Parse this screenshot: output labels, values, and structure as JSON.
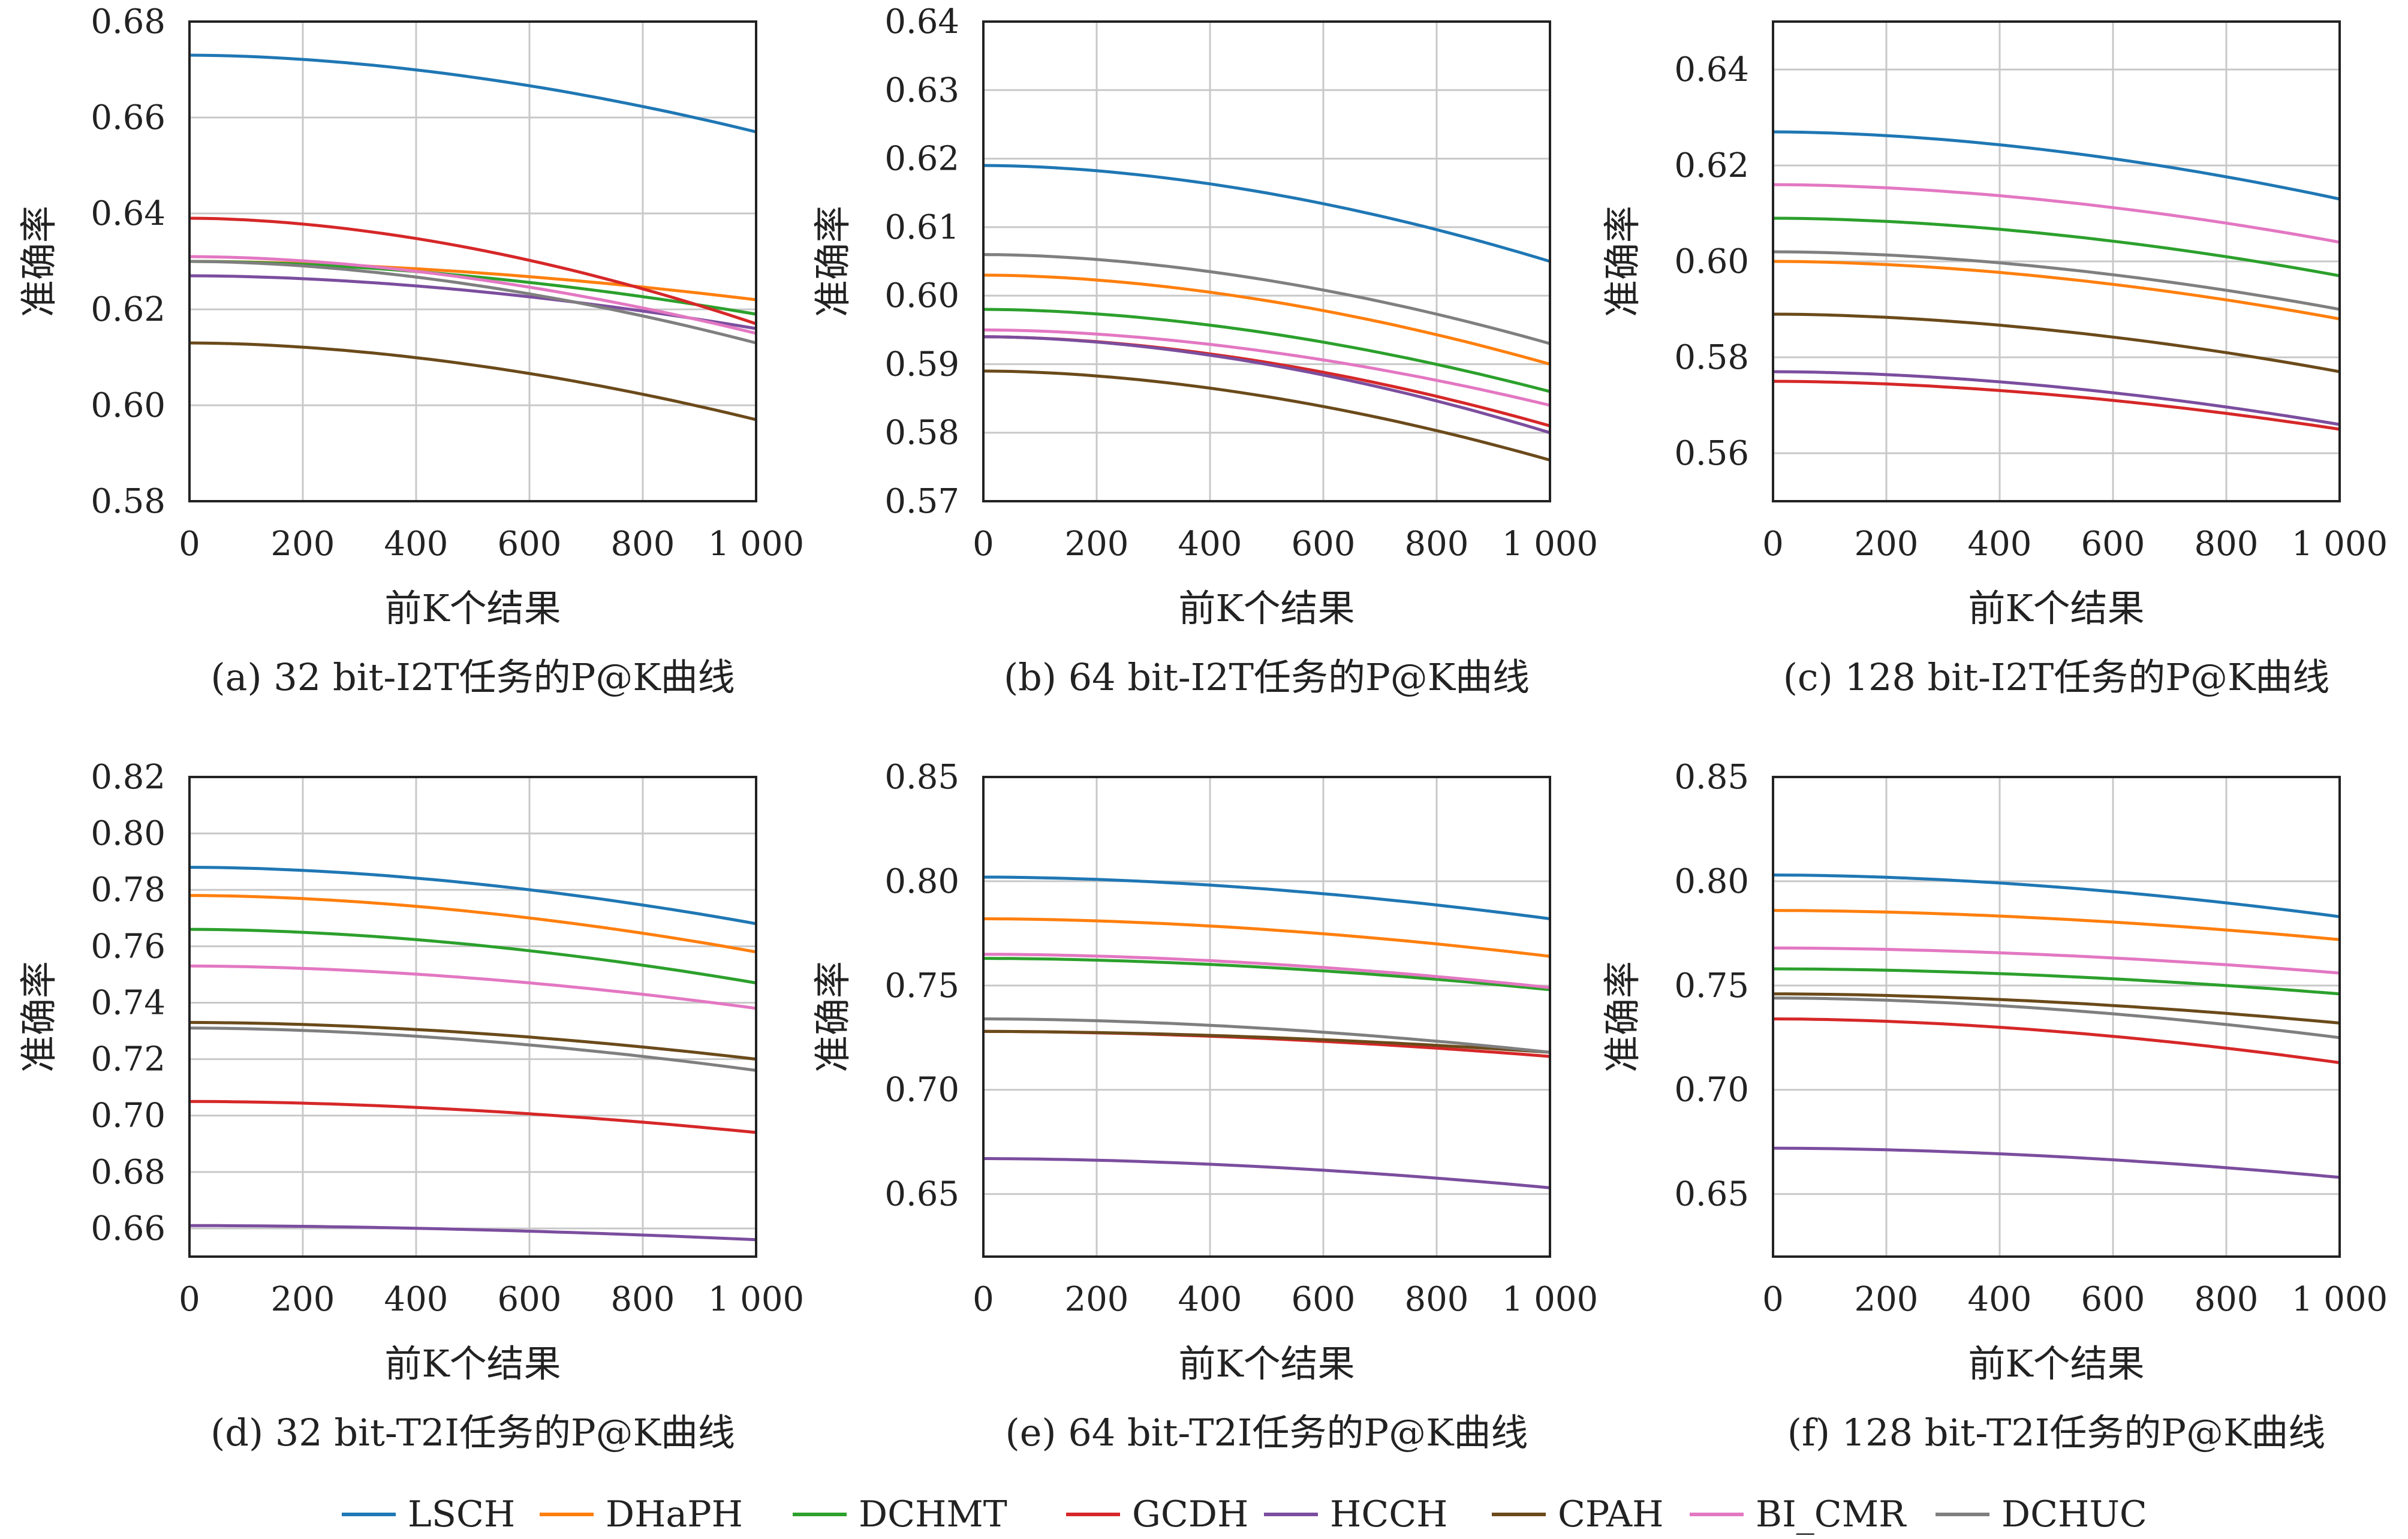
{
  "colors": {
    "LSCH": "#1f77b4",
    "DHaPH": "#ff7f0e",
    "DCHMT": "#2ca02c",
    "GCDH": "#d62728",
    "HCCH": "#7b4d9e",
    "CPAH": "#6b4a1a",
    "BI_CMR": "#e377c2",
    "DCHUC": "#7f7f7f"
  },
  "legend": [
    "LSCH",
    "DHaPH",
    "DCHMT",
    "GCDH",
    "HCCH",
    "CPAH",
    "BI_CMR",
    "DCHUC"
  ],
  "chart_data": [
    {
      "type": "line",
      "caption": "(a) 32 bit-I2T任务的P@K曲线",
      "xlabel": "前K个结果",
      "ylabel": "准确率",
      "xlim": [
        0,
        1000
      ],
      "ylim": [
        0.58,
        0.68
      ],
      "xticks": [
        "0",
        "200",
        "400",
        "600",
        "800",
        "1 000"
      ],
      "yticks": [
        "0.58",
        "0.60",
        "0.62",
        "0.64",
        "0.66",
        "0.68"
      ],
      "grid": true,
      "series": [
        {
          "name": "LSCH",
          "start": 0.673,
          "end": 0.657
        },
        {
          "name": "DHaPH",
          "start": 0.63,
          "end": 0.622
        },
        {
          "name": "DCHMT",
          "start": 0.63,
          "end": 0.619
        },
        {
          "name": "GCDH",
          "start": 0.639,
          "end": 0.617
        },
        {
          "name": "HCCH",
          "start": 0.627,
          "end": 0.616
        },
        {
          "name": "CPAH",
          "start": 0.613,
          "end": 0.597
        },
        {
          "name": "BI_CMR",
          "start": 0.631,
          "end": 0.615
        },
        {
          "name": "DCHUC",
          "start": 0.63,
          "end": 0.613
        }
      ]
    },
    {
      "type": "line",
      "caption": "(b) 64 bit-I2T任务的P@K曲线",
      "xlabel": "前K个结果",
      "ylabel": "准确率",
      "xlim": [
        0,
        1000
      ],
      "ylim": [
        0.57,
        0.64
      ],
      "xticks": [
        "0",
        "200",
        "400",
        "600",
        "800",
        "1 000"
      ],
      "yticks": [
        "0.57",
        "0.58",
        "0.59",
        "0.60",
        "0.61",
        "0.62",
        "0.63",
        "0.64"
      ],
      "grid": true,
      "series": [
        {
          "name": "LSCH",
          "start": 0.619,
          "end": 0.605
        },
        {
          "name": "DHaPH",
          "start": 0.603,
          "end": 0.59
        },
        {
          "name": "DCHMT",
          "start": 0.598,
          "end": 0.586
        },
        {
          "name": "GCDH",
          "start": 0.594,
          "end": 0.581
        },
        {
          "name": "HCCH",
          "start": 0.594,
          "end": 0.58
        },
        {
          "name": "CPAH",
          "start": 0.589,
          "end": 0.576
        },
        {
          "name": "BI_CMR",
          "start": 0.595,
          "end": 0.584
        },
        {
          "name": "DCHUC",
          "start": 0.606,
          "end": 0.593
        }
      ]
    },
    {
      "type": "line",
      "caption": "(c) 128 bit-I2T任务的P@K曲线",
      "xlabel": "前K个结果",
      "ylabel": "准确率",
      "xlim": [
        0,
        1000
      ],
      "ylim": [
        0.55,
        0.65
      ],
      "xticks": [
        "0",
        "200",
        "400",
        "600",
        "800",
        "1 000"
      ],
      "yticks": [
        "0.56",
        "0.58",
        "0.60",
        "0.62",
        "0.64"
      ],
      "grid": true,
      "series": [
        {
          "name": "LSCH",
          "start": 0.627,
          "end": 0.613
        },
        {
          "name": "DHaPH",
          "start": 0.6,
          "end": 0.588
        },
        {
          "name": "DCHMT",
          "start": 0.609,
          "end": 0.597
        },
        {
          "name": "GCDH",
          "start": 0.575,
          "end": 0.565
        },
        {
          "name": "HCCH",
          "start": 0.577,
          "end": 0.566
        },
        {
          "name": "CPAH",
          "start": 0.589,
          "end": 0.577
        },
        {
          "name": "BI_CMR",
          "start": 0.616,
          "end": 0.604
        },
        {
          "name": "DCHUC",
          "start": 0.602,
          "end": 0.59
        }
      ]
    },
    {
      "type": "line",
      "caption": "(d) 32 bit-T2I任务的P@K曲线",
      "xlabel": "前K个结果",
      "ylabel": "准确率",
      "xlim": [
        0,
        1000
      ],
      "ylim": [
        0.65,
        0.82
      ],
      "xticks": [
        "0",
        "200",
        "400",
        "600",
        "800",
        "1 000"
      ],
      "yticks": [
        "0.66",
        "0.68",
        "0.70",
        "0.72",
        "0.74",
        "0.76",
        "0.78",
        "0.80",
        "0.82"
      ],
      "grid": true,
      "series": [
        {
          "name": "LSCH",
          "start": 0.788,
          "end": 0.768
        },
        {
          "name": "DHaPH",
          "start": 0.778,
          "end": 0.758
        },
        {
          "name": "DCHMT",
          "start": 0.766,
          "end": 0.747
        },
        {
          "name": "GCDH",
          "start": 0.705,
          "end": 0.694
        },
        {
          "name": "HCCH",
          "start": 0.661,
          "end": 0.656
        },
        {
          "name": "CPAH",
          "start": 0.733,
          "end": 0.72
        },
        {
          "name": "BI_CMR",
          "start": 0.753,
          "end": 0.738
        },
        {
          "name": "DCHUC",
          "start": 0.731,
          "end": 0.716
        }
      ]
    },
    {
      "type": "line",
      "caption": "(e) 64 bit-T2I任务的P@K曲线",
      "xlabel": "前K个结果",
      "ylabel": "准确率",
      "xlim": [
        0,
        1000
      ],
      "ylim": [
        0.62,
        0.85
      ],
      "xticks": [
        "0",
        "200",
        "400",
        "600",
        "800",
        "1 000"
      ],
      "yticks": [
        "0.65",
        "0.70",
        "0.75",
        "0.80",
        "0.85"
      ],
      "grid": true,
      "series": [
        {
          "name": "LSCH",
          "start": 0.802,
          "end": 0.782
        },
        {
          "name": "DHaPH",
          "start": 0.782,
          "end": 0.764
        },
        {
          "name": "DCHMT",
          "start": 0.763,
          "end": 0.748
        },
        {
          "name": "GCDH",
          "start": 0.728,
          "end": 0.716
        },
        {
          "name": "HCCH",
          "start": 0.667,
          "end": 0.653
        },
        {
          "name": "CPAH",
          "start": 0.728,
          "end": 0.718
        },
        {
          "name": "BI_CMR",
          "start": 0.765,
          "end": 0.749
        },
        {
          "name": "DCHUC",
          "start": 0.734,
          "end": 0.718
        }
      ]
    },
    {
      "type": "line",
      "caption": "(f) 128 bit-T2I任务的P@K曲线",
      "xlabel": "前K个结果",
      "ylabel": "准确率",
      "xlim": [
        0,
        1000
      ],
      "ylim": [
        0.62,
        0.85
      ],
      "xticks": [
        "0",
        "200",
        "400",
        "600",
        "800",
        "1 000"
      ],
      "yticks": [
        "0.65",
        "0.70",
        "0.75",
        "0.80",
        "0.85"
      ],
      "grid": true,
      "series": [
        {
          "name": "LSCH",
          "start": 0.803,
          "end": 0.783
        },
        {
          "name": "DHaPH",
          "start": 0.786,
          "end": 0.772
        },
        {
          "name": "DCHMT",
          "start": 0.758,
          "end": 0.746
        },
        {
          "name": "GCDH",
          "start": 0.734,
          "end": 0.713
        },
        {
          "name": "HCCH",
          "start": 0.672,
          "end": 0.658
        },
        {
          "name": "CPAH",
          "start": 0.746,
          "end": 0.732
        },
        {
          "name": "BI_CMR",
          "start": 0.768,
          "end": 0.756
        },
        {
          "name": "DCHUC",
          "start": 0.744,
          "end": 0.725
        }
      ]
    }
  ]
}
